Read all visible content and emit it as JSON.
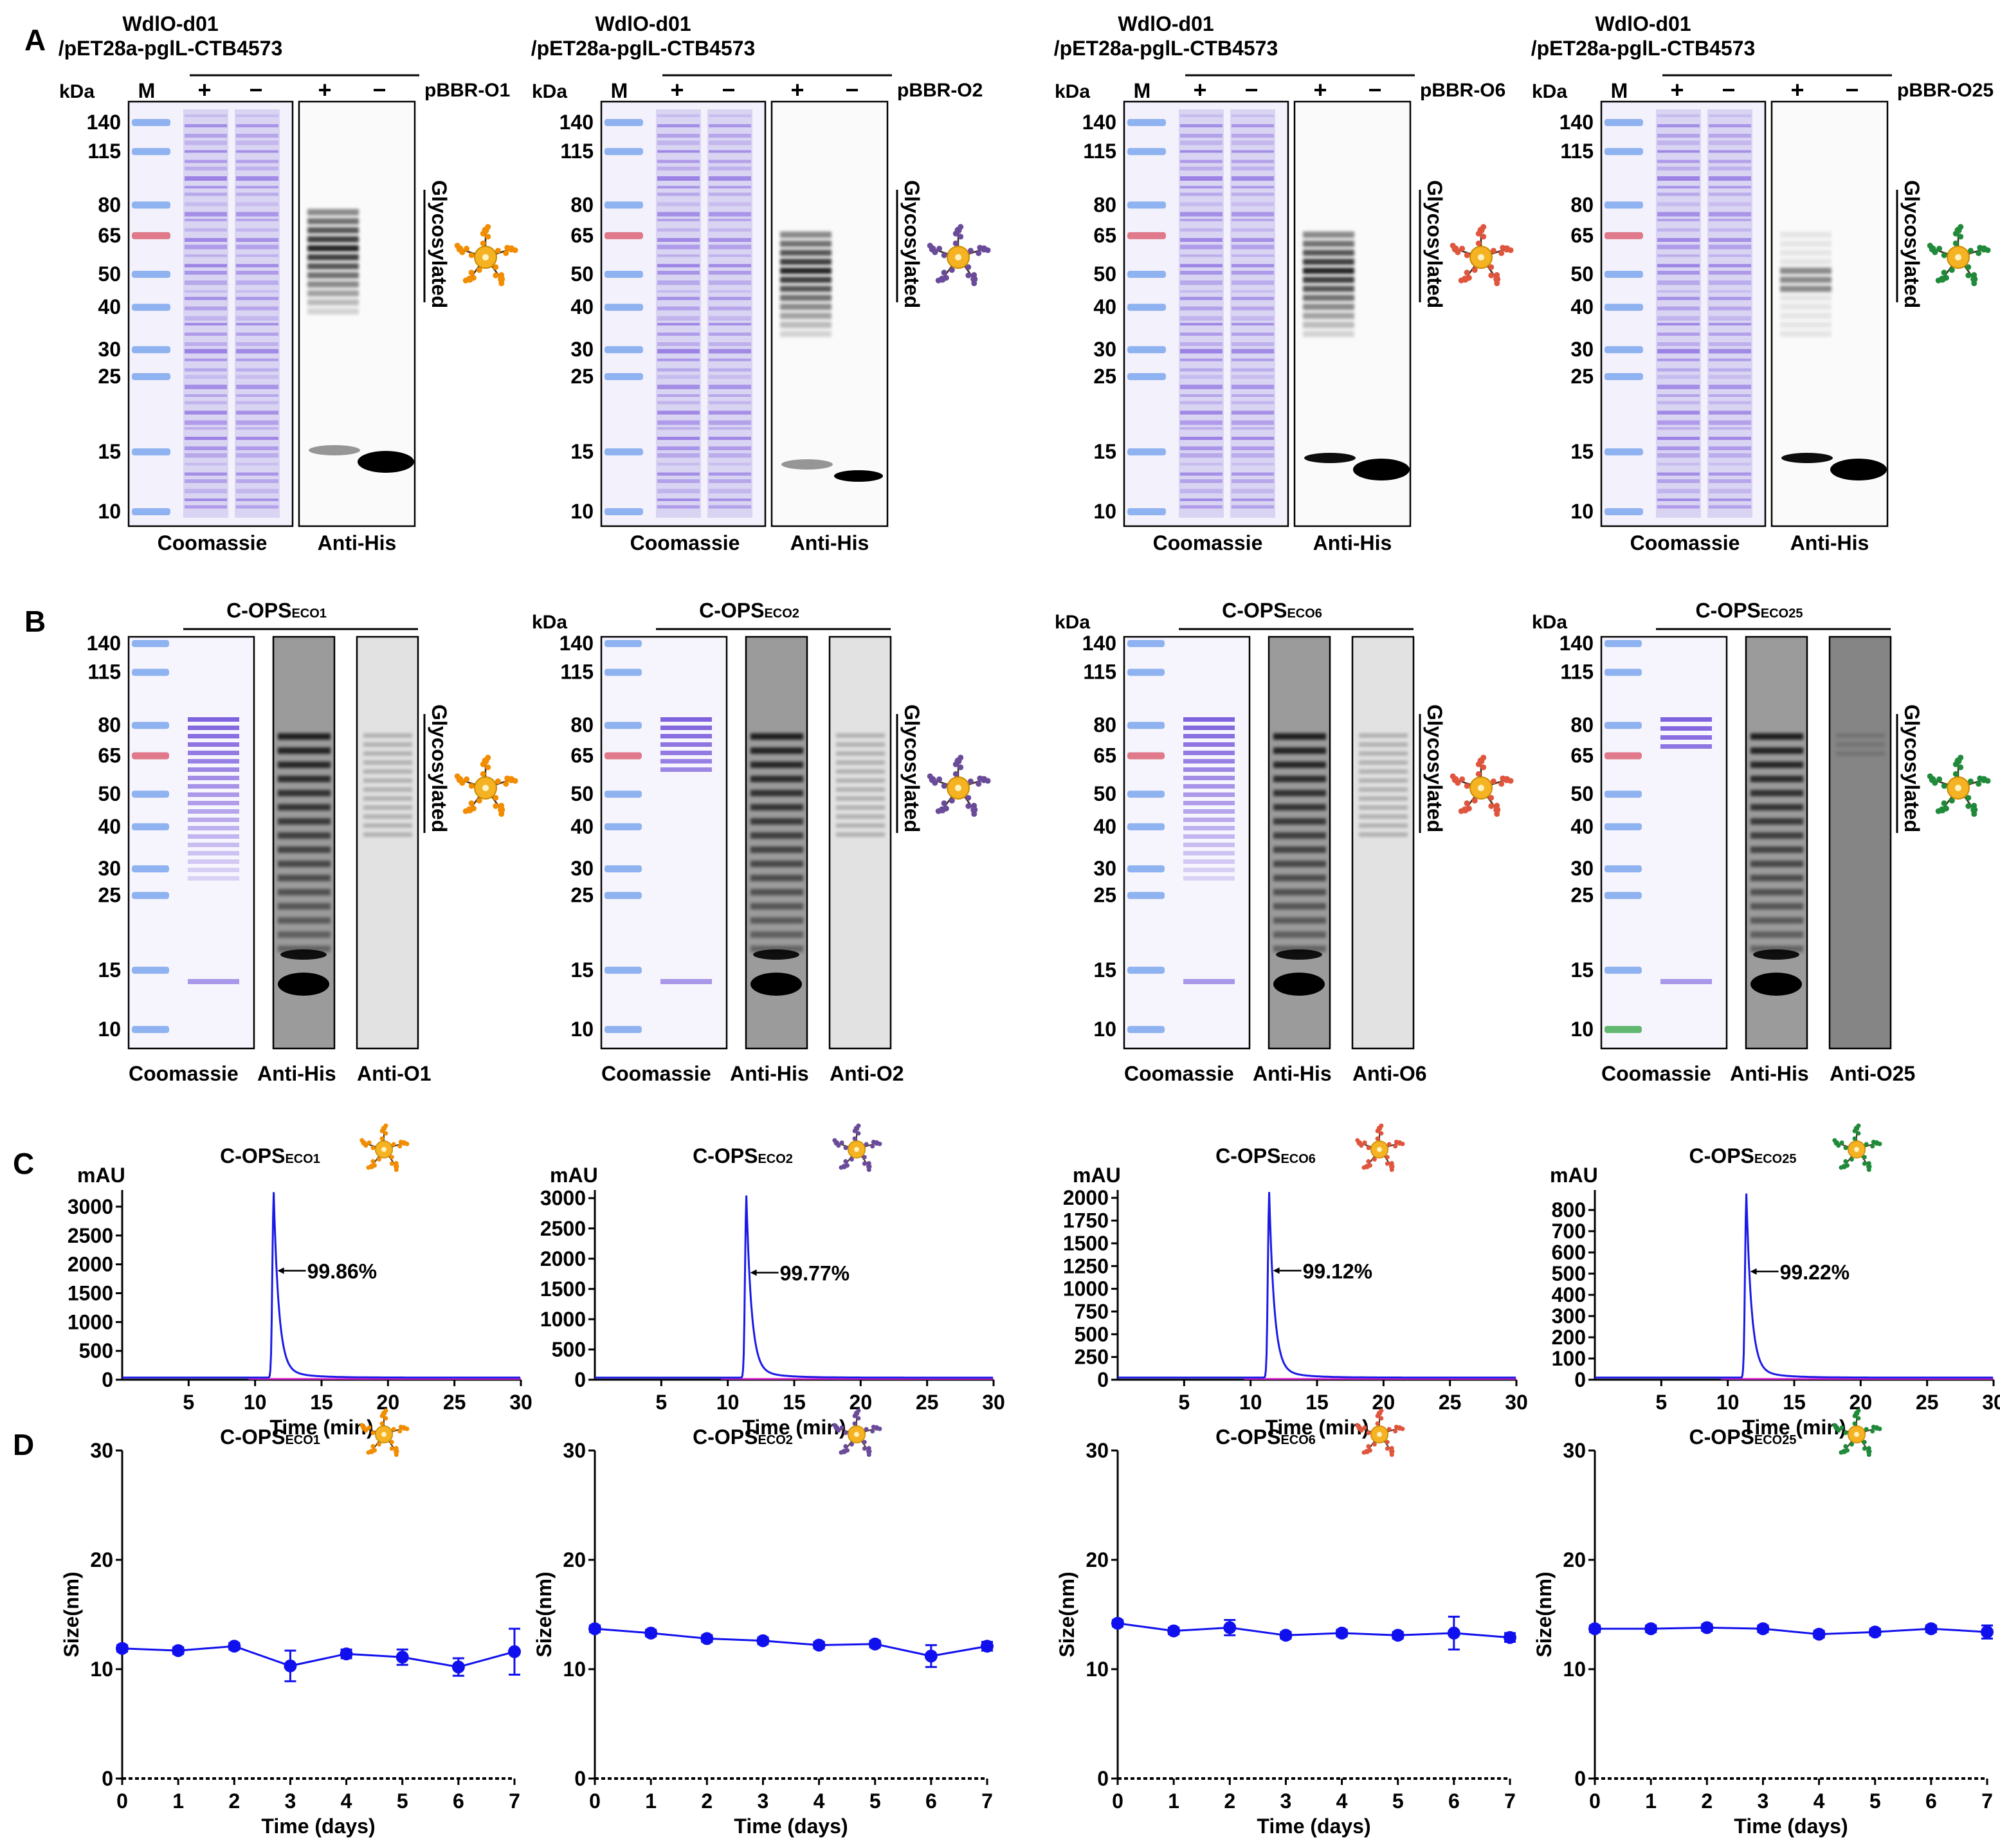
{
  "colors": {
    "coomassie_lane": "#cfc7f0",
    "coomassie_band": "#8c6fe0",
    "coomassie_band_dark": "#6a48d8",
    "ladder_band": "#8fb2f0",
    "ladder_red": "#e07a8a",
    "ladder_green": "#62b870",
    "blot_band": "#000000",
    "trace_blue": "#1a1ae6",
    "trace_pink": "#e02ad6",
    "dls_blue": "#1010ee",
    "glycan_gold": "#f5b324"
  },
  "panel_letters": {
    "a": "A",
    "b": "B",
    "c": "C",
    "d": "D"
  },
  "common": {
    "kda": "kDa",
    "marker": "M",
    "plus": "+",
    "minus": "−",
    "coomassie": "Coomassie",
    "anti_his": "Anti-His",
    "glycosylated": "Glycosylated",
    "host_line1": "WdlO-d01",
    "host_line2": "/pET28a-pglL-CTB4573",
    "mau": "mAU",
    "time_min": "Time (min)",
    "time_days": "Time (days)",
    "size_nm": "Size(nm)"
  },
  "panels": [
    {
      "id": "O1",
      "sub": "ECO1",
      "plasmid": "pBBR-O1",
      "anti": "Anti-O1",
      "glycan_color": "#f28c00",
      "markers_a": [
        "140",
        "115",
        "80",
        "65",
        "50",
        "40",
        "30",
        "25",
        "15",
        "10"
      ],
      "markers_b": [
        "140",
        "115",
        "80",
        "65",
        "50",
        "40",
        "30",
        "25",
        "15",
        "10"
      ],
      "purity": "99.86%",
      "hplc_yticks": [
        "0",
        "500",
        "1000",
        "1500",
        "2000",
        "2500",
        "3000"
      ],
      "hplc_ymax": 3200,
      "hplc_peak_value": 3150,
      "xticks_min": [
        "5",
        "10",
        "15",
        "20",
        "25",
        "30"
      ],
      "dls_sizes": [
        11.9,
        11.7,
        12.1,
        10.3,
        11.4,
        11.1,
        10.2,
        11.6
      ],
      "dls_err": [
        0.3,
        0.3,
        0.3,
        1.4,
        0.4,
        0.7,
        0.8,
        2.1
      ]
    },
    {
      "id": "O2",
      "sub": "ECO2",
      "plasmid": "pBBR-O2",
      "anti": "Anti-O2",
      "glycan_color": "#6a4b9a",
      "markers_a": [
        "140",
        "115",
        "80",
        "65",
        "50",
        "40",
        "30",
        "25",
        "15",
        "10"
      ],
      "markers_b": [
        "140",
        "115",
        "80",
        "65",
        "50",
        "40",
        "30",
        "25",
        "15",
        "10"
      ],
      "purity": "99.77%",
      "hplc_yticks": [
        "0",
        "500",
        "1000",
        "1500",
        "2000",
        "2500",
        "3000"
      ],
      "hplc_ymax": 3050,
      "hplc_peak_value": 2950,
      "xticks_min": [
        "5",
        "10",
        "15",
        "20",
        "25",
        "30"
      ],
      "dls_sizes": [
        13.7,
        13.3,
        12.8,
        12.6,
        12.2,
        12.3,
        11.2,
        12.1
      ],
      "dls_err": [
        0.3,
        0.3,
        0.3,
        0.3,
        0.3,
        0.3,
        1.0,
        0.4
      ]
    },
    {
      "id": "O6",
      "sub": "ECO6",
      "plasmid": "pBBR-O6",
      "anti": "Anti-O6",
      "glycan_color": "#e0553d",
      "markers_a": [
        "140",
        "115",
        "80",
        "65",
        "50",
        "40",
        "30",
        "25",
        "15",
        "10"
      ],
      "markers_b": [
        "140",
        "115",
        "80",
        "65",
        "50",
        "40",
        "30",
        "25",
        "15",
        "10"
      ],
      "purity": "99.12%",
      "hplc_yticks": [
        "0",
        "250",
        "500",
        "750",
        "1000",
        "1250",
        "1500",
        "1750",
        "2000"
      ],
      "hplc_ymax": 2030,
      "hplc_peak_value": 2000,
      "xticks_min": [
        "5",
        "10",
        "15",
        "20",
        "25",
        "30"
      ],
      "dls_sizes": [
        14.2,
        13.5,
        13.8,
        13.1,
        13.3,
        13.1,
        13.3,
        12.9
      ],
      "dls_err": [
        0.3,
        0.3,
        0.7,
        0.3,
        0.3,
        0.3,
        1.5,
        0.4
      ]
    },
    {
      "id": "O25",
      "sub": "ECO25",
      "plasmid": "pBBR-O25",
      "anti": "Anti-O25",
      "glycan_color": "#1f8a3a",
      "markers_a": [
        "140",
        "115",
        "80",
        "65",
        "50",
        "40",
        "30",
        "25",
        "15",
        "10"
      ],
      "markers_b": [
        "140",
        "115",
        "80",
        "65",
        "50",
        "40",
        "30",
        "25",
        "15",
        "10"
      ],
      "purity": "99.22%",
      "hplc_yticks": [
        "0",
        "100",
        "200",
        "300",
        "400",
        "500",
        "600",
        "700",
        "800"
      ],
      "hplc_ymax": 870,
      "hplc_peak_value": 850,
      "xticks_min": [
        "5",
        "10",
        "15",
        "20",
        "25",
        "30"
      ],
      "dls_sizes": [
        13.7,
        13.7,
        13.8,
        13.7,
        13.2,
        13.4,
        13.7,
        13.4
      ],
      "dls_err": [
        0.3,
        0.3,
        0.3,
        0.3,
        0.3,
        0.3,
        0.3,
        0.6
      ]
    }
  ],
  "chart_data": [
    {
      "type": "line",
      "title": "C-OPS ECO1",
      "xlabel": "Time (min)",
      "ylabel": "mAU",
      "xlim": [
        0,
        30
      ],
      "ylim": [
        0,
        3200
      ],
      "series": [
        {
          "name": "trace",
          "peak_time": 11.4,
          "peak_value": 3150
        }
      ],
      "annotation": "99.86%"
    },
    {
      "type": "line",
      "title": "C-OPS ECO2",
      "xlabel": "Time (min)",
      "ylabel": "mAU",
      "xlim": [
        0,
        30
      ],
      "ylim": [
        0,
        3050
      ],
      "series": [
        {
          "name": "trace",
          "peak_time": 11.4,
          "peak_value": 2950
        }
      ],
      "annotation": "99.77%"
    },
    {
      "type": "line",
      "title": "C-OPS ECO6",
      "xlabel": "Time (min)",
      "ylabel": "mAU",
      "xlim": [
        0,
        30
      ],
      "ylim": [
        0,
        2030
      ],
      "series": [
        {
          "name": "trace",
          "peak_time": 11.4,
          "peak_value": 2000
        }
      ],
      "annotation": "99.12%"
    },
    {
      "type": "line",
      "title": "C-OPS ECO25",
      "xlabel": "Time (min)",
      "ylabel": "mAU",
      "xlim": [
        0,
        30
      ],
      "ylim": [
        0,
        870
      ],
      "series": [
        {
          "name": "trace",
          "peak_time": 11.4,
          "peak_value": 850
        }
      ],
      "annotation": "99.22%"
    },
    {
      "type": "line",
      "title": "C-OPS ECO1",
      "xlabel": "Time (days)",
      "ylabel": "Size(nm)",
      "xlim": [
        0,
        7
      ],
      "ylim": [
        0,
        30
      ],
      "x": [
        0,
        1,
        2,
        3,
        4,
        5,
        6,
        7
      ],
      "series": [
        {
          "name": "size",
          "values": [
            11.9,
            11.7,
            12.1,
            10.3,
            11.4,
            11.1,
            10.2,
            11.6
          ]
        }
      ]
    },
    {
      "type": "line",
      "title": "C-OPS ECO2",
      "xlabel": "Time (days)",
      "ylabel": "Size(nm)",
      "xlim": [
        0,
        7
      ],
      "ylim": [
        0,
        30
      ],
      "x": [
        0,
        1,
        2,
        3,
        4,
        5,
        6,
        7
      ],
      "series": [
        {
          "name": "size",
          "values": [
            13.7,
            13.3,
            12.8,
            12.6,
            12.2,
            12.3,
            11.2,
            12.1
          ]
        }
      ]
    },
    {
      "type": "line",
      "title": "C-OPS ECO6",
      "xlabel": "Time (days)",
      "ylabel": "Size(nm)",
      "xlim": [
        0,
        7
      ],
      "ylim": [
        0,
        30
      ],
      "x": [
        0,
        1,
        2,
        3,
        4,
        5,
        6,
        7
      ],
      "series": [
        {
          "name": "size",
          "values": [
            14.2,
            13.5,
            13.8,
            13.1,
            13.3,
            13.1,
            13.3,
            12.9
          ]
        }
      ]
    },
    {
      "type": "line",
      "title": "C-OPS ECO25",
      "xlabel": "Time (days)",
      "ylabel": "Size(nm)",
      "xlim": [
        0,
        7
      ],
      "ylim": [
        0,
        30
      ],
      "x": [
        0,
        1,
        2,
        3,
        4,
        5,
        6,
        7
      ],
      "series": [
        {
          "name": "size",
          "values": [
            13.7,
            13.7,
            13.8,
            13.7,
            13.2,
            13.4,
            13.7,
            13.4
          ]
        }
      ]
    }
  ]
}
